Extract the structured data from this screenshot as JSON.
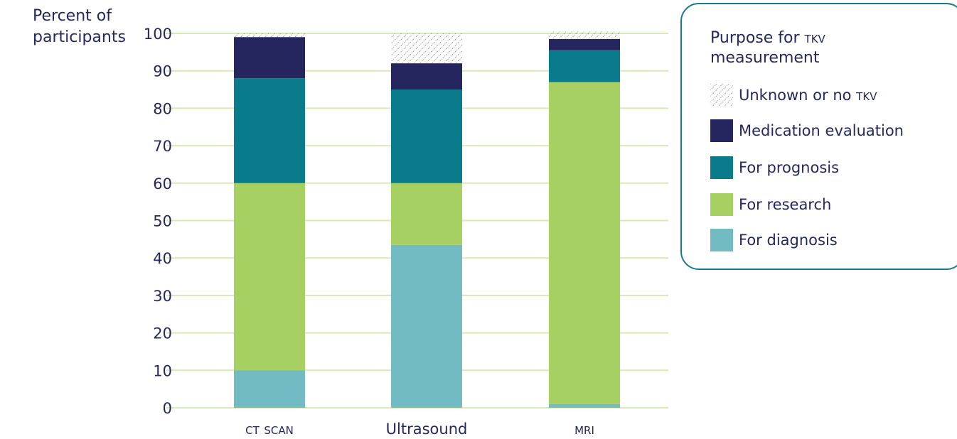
{
  "chart_data": {
    "type": "bar",
    "stacked": true,
    "ylabel": "Percent of participants",
    "ylim": [
      0,
      100
    ],
    "yticks": [
      0,
      10,
      20,
      30,
      40,
      50,
      60,
      70,
      80,
      90,
      100
    ],
    "grid": true,
    "categories": [
      "CT scan",
      "Ultrasound",
      "MRI"
    ],
    "category_labels": [
      "ct scan",
      "Ultrasound",
      "mri"
    ],
    "series": [
      {
        "name": "For diagnosis",
        "color": "#72bbc3",
        "values": [
          10,
          43.5,
          1
        ]
      },
      {
        "name": "For research",
        "color": "#a7d062",
        "values": [
          50,
          16.5,
          86
        ]
      },
      {
        "name": "For prognosis",
        "color": "#097b8b",
        "values": [
          28,
          25,
          8.5
        ]
      },
      {
        "name": "Medication evaluation",
        "color": "#25265e",
        "values": [
          11,
          7,
          3
        ]
      },
      {
        "name": "Unknown or no TKV",
        "pattern": "hatched",
        "values": [
          1,
          8,
          2
        ]
      }
    ],
    "legend": {
      "title": "Purpose for TKV measurement",
      "placement": "right",
      "order": [
        "Unknown or no TKV",
        "Medication evaluation",
        "For prognosis",
        "For research",
        "For diagnosis"
      ]
    },
    "gridline_color": "#d8eab4"
  },
  "labels": {
    "ylabel_line1": "Percent of",
    "ylabel_line2": "participants",
    "legend_title_line1": "Purpose for ",
    "legend_title_caps": "tkv",
    "legend_title_line2": "measurement",
    "legend_unknown_main": "Unknown or no ",
    "legend_unknown_caps": "tkv",
    "legend_medication": "Medication evaluation",
    "legend_prognosis": "For prognosis",
    "legend_research": "For research",
    "legend_diagnosis": "For diagnosis"
  }
}
